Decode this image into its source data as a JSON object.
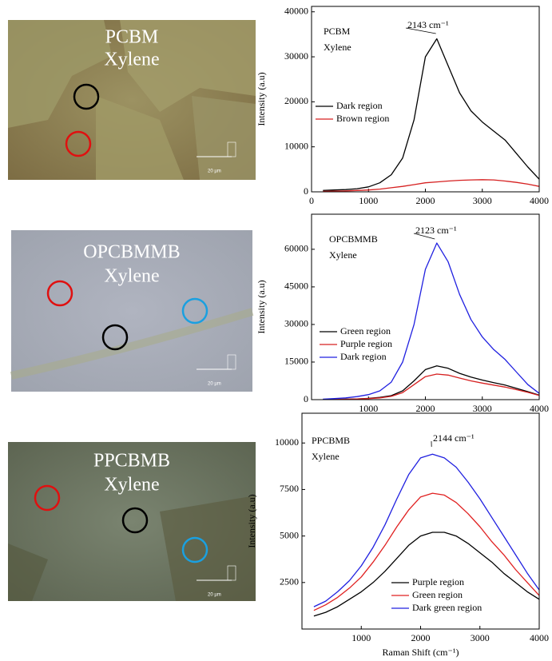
{
  "chart_data": [
    {
      "type": "line",
      "title": [
        "PCBM",
        "Xylene"
      ],
      "annotation": "2143 cm⁻¹",
      "y_label": "Intensity (a.u)",
      "x": [
        200,
        400,
        600,
        800,
        1000,
        1200,
        1400,
        1600,
        1800,
        2000,
        2200,
        2400,
        2600,
        2800,
        3000,
        3200,
        3400,
        3600,
        3800,
        4000
      ],
      "series": [
        {
          "name": "Dark region",
          "color": "#000000",
          "values": [
            300,
            400,
            500,
            700,
            1100,
            2000,
            3800,
            7500,
            16000,
            30000,
            34000,
            28000,
            22000,
            18000,
            15500,
            13500,
            11500,
            8500,
            5500,
            2800
          ]
        },
        {
          "name": "Brown region",
          "color": "#d62020",
          "values": [
            100,
            150,
            200,
            300,
            400,
            600,
            900,
            1200,
            1600,
            2000,
            2200,
            2400,
            2550,
            2650,
            2700,
            2650,
            2400,
            2100,
            1700,
            1200
          ]
        }
      ],
      "xlim": [
        0,
        4000
      ],
      "xticks": [
        0,
        1000,
        2000,
        3000,
        4000
      ],
      "ylim": [
        0,
        41200
      ],
      "yticks": [
        0,
        10000,
        20000,
        30000,
        40000
      ]
    },
    {
      "type": "line",
      "title": [
        "OPCBMMB",
        "Xylene"
      ],
      "annotation": "2123 cm⁻¹",
      "y_label": "Intensity (a.u)",
      "x": [
        200,
        400,
        600,
        800,
        1000,
        1200,
        1400,
        1600,
        1800,
        2000,
        2200,
        2400,
        2600,
        2800,
        3000,
        3200,
        3400,
        3600,
        3800,
        4000
      ],
      "series": [
        {
          "name": "Green region",
          "color": "#000000",
          "values": [
            50,
            100,
            200,
            300,
            500,
            900,
            1600,
            3500,
            7500,
            12000,
            13500,
            12500,
            10500,
            9000,
            7800,
            6800,
            5800,
            4500,
            3200,
            1800
          ]
        },
        {
          "name": "Purple region",
          "color": "#d62020",
          "values": [
            50,
            100,
            150,
            250,
            400,
            700,
            1300,
            2800,
            6000,
            9200,
            10200,
            9800,
            8600,
            7500,
            6600,
            5800,
            5000,
            4000,
            2900,
            1700
          ]
        },
        {
          "name": "Dark region",
          "color": "#2020e0",
          "values": [
            200,
            400,
            700,
            1200,
            2000,
            3500,
            7000,
            15000,
            30000,
            52000,
            62500,
            55000,
            42000,
            32000,
            25000,
            20000,
            16000,
            11000,
            6000,
            2500
          ]
        }
      ],
      "xlim": [
        0,
        4000
      ],
      "xticks": [
        1000,
        2000,
        3000,
        4000
      ],
      "ylim": [
        0,
        74000
      ],
      "yticks": [
        0,
        15000,
        30000,
        45000,
        60000
      ]
    },
    {
      "type": "line",
      "title": [
        "PPCBMB",
        "Xylene"
      ],
      "annotation": "2144 cm⁻¹",
      "y_label": "Intensity (a.u)",
      "x_label": "Raman Shift (cm⁻¹)",
      "x": [
        200,
        400,
        600,
        800,
        1000,
        1200,
        1400,
        1600,
        1800,
        2000,
        2200,
        2400,
        2600,
        2800,
        3000,
        3200,
        3400,
        3600,
        3800,
        4000
      ],
      "series": [
        {
          "name": "Purple region",
          "color": "#000000",
          "values": [
            700,
            900,
            1200,
            1600,
            2000,
            2500,
            3100,
            3800,
            4500,
            5000,
            5200,
            5200,
            5000,
            4600,
            4100,
            3600,
            3000,
            2500,
            2000,
            1600
          ]
        },
        {
          "name": "Green region",
          "color": "#e02020",
          "values": [
            1000,
            1300,
            1700,
            2200,
            2800,
            3600,
            4500,
            5500,
            6400,
            7100,
            7300,
            7200,
            6800,
            6200,
            5500,
            4700,
            4000,
            3200,
            2500,
            1800
          ]
        },
        {
          "name": "Dark green region",
          "color": "#2020e0",
          "values": [
            1200,
            1500,
            2000,
            2600,
            3400,
            4400,
            5600,
            7000,
            8300,
            9200,
            9400,
            9200,
            8700,
            7900,
            7000,
            6000,
            5000,
            4000,
            3000,
            2100
          ]
        }
      ],
      "xlim": [
        0,
        4000
      ],
      "xticks": [
        1000,
        2000,
        3000,
        4000
      ],
      "ylim": [
        0,
        11600
      ],
      "yticks": [
        2500,
        5000,
        7500,
        10000
      ]
    }
  ],
  "images": [
    {
      "title": [
        "PCBM",
        "Xylene"
      ],
      "scale_bar": "20 µm"
    },
    {
      "title": [
        "OPCBMMB",
        "Xylene"
      ],
      "scale_bar": "20 µm"
    },
    {
      "title": [
        "PPCBMB",
        "Xylene"
      ],
      "scale_bar": "20 µm"
    }
  ]
}
